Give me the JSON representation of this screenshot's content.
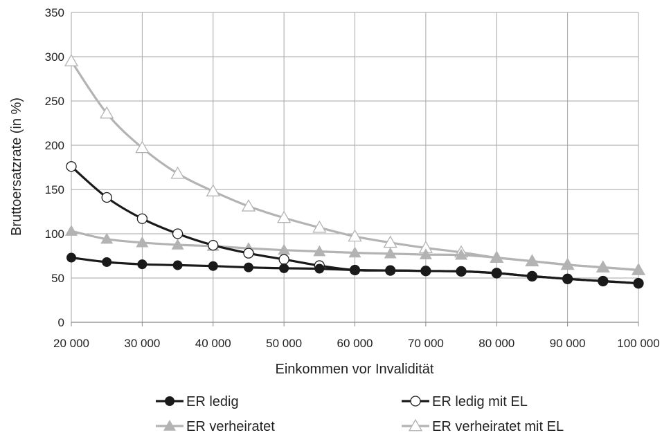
{
  "chart_data": {
    "type": "line",
    "title": "",
    "xlabel": "Einkommen vor Invalidität",
    "ylabel": "Bruttoersatzrate (in %)",
    "xlim": [
      20000,
      100000
    ],
    "ylim": [
      0,
      350
    ],
    "x_ticks": [
      20000,
      30000,
      40000,
      50000,
      60000,
      70000,
      80000,
      90000,
      100000
    ],
    "x_tick_labels": [
      "20 000",
      "30 000",
      "40 000",
      "50 000",
      "60 000",
      "70 000",
      "80 000",
      "90 000",
      "100 000"
    ],
    "y_ticks": [
      0,
      50,
      100,
      150,
      200,
      250,
      300,
      350
    ],
    "y_tick_labels": [
      "0",
      "50",
      "100",
      "150",
      "200",
      "250",
      "300",
      "350"
    ],
    "grid": true,
    "legend_position": "bottom",
    "x": [
      20000,
      25000,
      30000,
      35000,
      40000,
      45000,
      50000,
      55000,
      60000,
      65000,
      70000,
      75000,
      80000,
      85000,
      90000,
      95000,
      100000
    ],
    "series": [
      {
        "name": "ER ledig",
        "color": "#1a1a1a",
        "marker": "filled-circle",
        "values": [
          73,
          68,
          65.5,
          64.5,
          63.5,
          62,
          61,
          60.5,
          59,
          58.5,
          58,
          57.5,
          55.5,
          52,
          49,
          46.5,
          44
        ]
      },
      {
        "name": "ER ledig mit EL",
        "color": "#1a1a1a",
        "marker": "hollow-circle",
        "values": [
          176,
          141,
          117,
          100,
          87,
          78,
          71,
          64,
          59,
          58.5,
          58,
          57.5,
          55.5,
          52,
          49,
          46.5,
          44
        ]
      },
      {
        "name": "ER verheiratet",
        "color": "#b3b3b3",
        "marker": "filled-triangle",
        "values": [
          103,
          94,
          90,
          87.5,
          86,
          83.5,
          81.5,
          80,
          78.5,
          77.5,
          76.5,
          76,
          73,
          69,
          65,
          62,
          59
        ]
      },
      {
        "name": "ER verheiratet mit EL",
        "color": "#b3b3b3",
        "marker": "hollow-triangle",
        "values": [
          295,
          236,
          197,
          168,
          148,
          131,
          118,
          107,
          97,
          90,
          84,
          79,
          73,
          69,
          65,
          62,
          59
        ]
      }
    ]
  }
}
